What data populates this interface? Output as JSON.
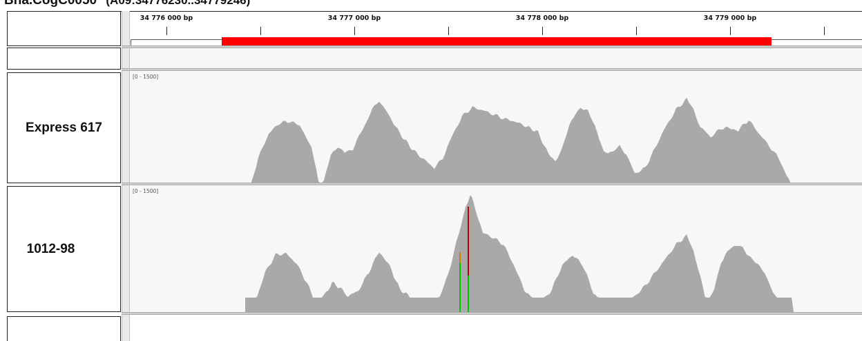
{
  "header": {
    "gene": "Bna.CogC0050",
    "range": "(A09:34776230..34779246)"
  },
  "ruler": {
    "ticks": [
      {
        "label": "34 776 000 bp",
        "pos": 0.0
      },
      {
        "label": "",
        "pos": 0.5
      },
      {
        "label": "34 777 000 bp",
        "pos": 1.0
      },
      {
        "label": "",
        "pos": 1.5
      },
      {
        "label": "34 778 000 bp",
        "pos": 2.0
      },
      {
        "label": "",
        "pos": 2.5
      },
      {
        "label": "34 779 000 bp",
        "pos": 3.0
      },
      {
        "label": "",
        "pos": 3.5
      }
    ],
    "feature_color": "#ff0000"
  },
  "tracks": [
    {
      "name": "Express 617",
      "data_range": "[0 - 1500]",
      "color": "#a9a9a9"
    },
    {
      "name": "1012-98",
      "data_range": "[0 - 1500]",
      "color": "#a9a9a9",
      "variant_colors": [
        "#00c000",
        "#c00000",
        "#d08000"
      ]
    }
  ]
}
